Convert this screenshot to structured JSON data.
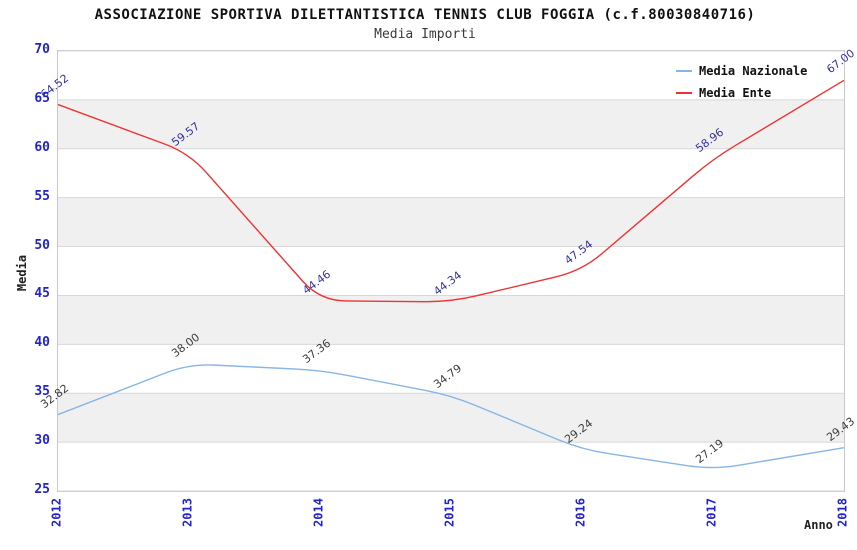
{
  "header": {
    "title": "ASSOCIAZIONE SPORTIVA DILETTANTISTICA TENNIS CLUB FOGGIA (c.f.80030840716)",
    "subtitle": "Media Importi"
  },
  "axes": {
    "y_label": "Media",
    "x_label": "Anno",
    "y_ticks": [
      70,
      65,
      60,
      55,
      50,
      45,
      40,
      35,
      30,
      25
    ],
    "x_ticks": [
      "2012",
      "2013",
      "2014",
      "2015",
      "2016",
      "2017",
      "2018"
    ],
    "tick_color": "#2323cb"
  },
  "chart_data": {
    "type": "line",
    "title": "ASSOCIAZIONE SPORTIVA DILETTANTISTICA TENNIS CLUB FOGGIA (c.f.80030840716)",
    "subtitle": "Media Importi",
    "xlabel": "Anno",
    "ylabel": "Media",
    "ylim": [
      25,
      70
    ],
    "grid": true,
    "legend_position": "top-right",
    "categories": [
      "2012",
      "2013",
      "2014",
      "2015",
      "2016",
      "2017",
      "2018"
    ],
    "series": [
      {
        "name": "Media Nazionale",
        "color": "#87b5e7",
        "label_color": "#3c3c3c",
        "values": [
          32.82,
          38.0,
          37.36,
          34.79,
          29.24,
          27.19,
          29.43
        ]
      },
      {
        "name": "Media Ente",
        "color": "#ee3333",
        "label_color": "#333399",
        "values": [
          64.52,
          59.57,
          44.46,
          44.34,
          47.54,
          58.96,
          67.0
        ]
      }
    ],
    "band_fill": "#f0f0f0",
    "grid_color": "#d8d8d8",
    "plot_border_color": "#c8c8c8"
  }
}
